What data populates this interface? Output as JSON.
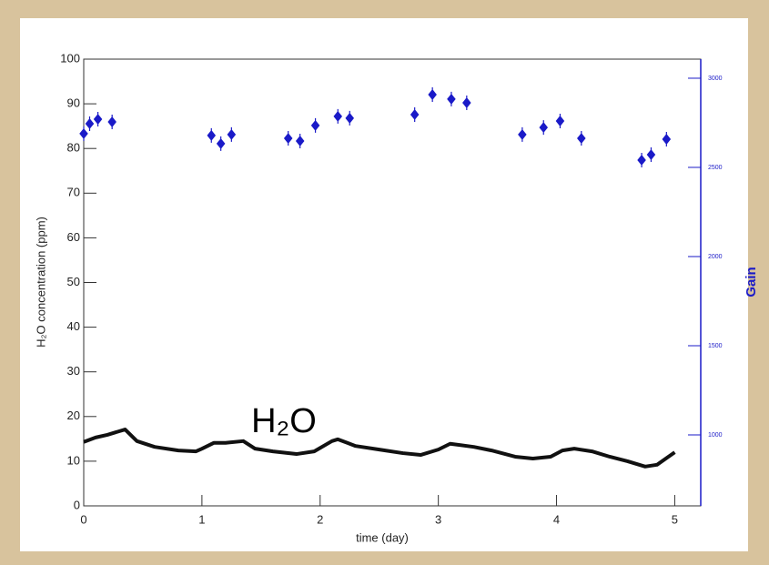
{
  "chart_data": {
    "type": "line",
    "xlabel": "time (day)",
    "ylabel": "H₂O concentration  (ppm)",
    "y2label": "Gain",
    "annotation": "H₂O",
    "xlim": [
      0,
      5.22
    ],
    "xticks": [
      0,
      1,
      2,
      3,
      4,
      5
    ],
    "ylim": [
      0,
      100
    ],
    "yticks": [
      0,
      10,
      20,
      30,
      40,
      50,
      60,
      70,
      80,
      90,
      100
    ],
    "y2lim": [
      602,
      3107
    ],
    "y2ticks": [
      1000,
      1500,
      2000,
      2500,
      3000
    ],
    "grid": false,
    "series": [
      {
        "color": "#111111",
        "x": [
          0,
          0.1,
          0.2,
          0.3,
          0.35,
          0.45,
          0.6,
          0.8,
          0.95,
          1.0,
          1.1,
          1.2,
          1.35,
          1.45,
          1.6,
          1.8,
          1.95,
          2.1,
          2.15,
          2.3,
          2.5,
          2.7,
          2.85,
          3.0,
          3.1,
          3.3,
          3.45,
          3.65,
          3.8,
          3.95,
          4.05,
          4.15,
          4.3,
          4.45,
          4.6,
          4.75,
          4.85,
          5.0
        ],
        "values": [
          14.3,
          15.3,
          15.9,
          16.7,
          17.1,
          14.5,
          13.2,
          12.4,
          12.2,
          12.8,
          14.1,
          14.1,
          14.5,
          12.8,
          12.2,
          11.6,
          12.2,
          14.5,
          14.9,
          13.4,
          12.6,
          11.8,
          11.4,
          12.6,
          13.9,
          13.2,
          12.4,
          11.0,
          10.6,
          11.0,
          12.4,
          12.8,
          12.2,
          11.0,
          10.0,
          8.8,
          9.2,
          12.0
        ]
      },
      {
        "color": "#1a1ac8",
        "axis": "y2",
        "marker": "cross",
        "x": [
          0,
          0.05,
          0.12,
          0.24,
          1.08,
          1.16,
          1.25,
          1.73,
          1.83,
          1.96,
          2.15,
          2.25,
          2.8,
          2.95,
          3.11,
          3.24,
          3.71,
          3.89,
          4.03,
          4.21,
          4.72,
          4.8,
          4.93
        ],
        "values": [
          2689,
          2745,
          2770,
          2755,
          2679,
          2633,
          2684,
          2663,
          2648,
          2735,
          2786,
          2776,
          2796,
          2908,
          2883,
          2862,
          2684,
          2724,
          2760,
          2663,
          2541,
          2571,
          2658
        ]
      }
    ]
  }
}
